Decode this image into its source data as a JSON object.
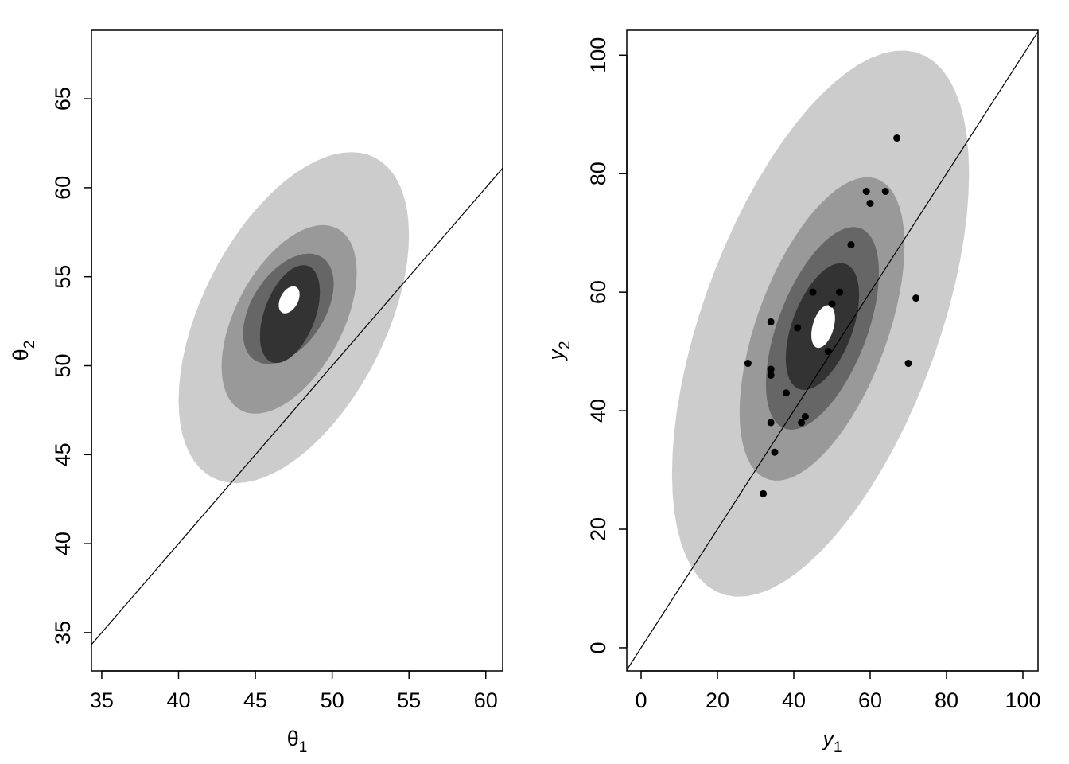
{
  "chart_data": [
    {
      "type": "contour",
      "xlabel": {
        "base": "θ",
        "sub": "1",
        "italic": false
      },
      "ylabel": {
        "base": "θ",
        "sub": "2",
        "italic": false
      },
      "xlim": [
        34.33,
        61.1
      ],
      "ylim": [
        32.85,
        68.85
      ],
      "xticks": [
        35,
        40,
        45,
        50,
        55,
        60
      ],
      "yticks": [
        35,
        40,
        45,
        50,
        55,
        60,
        65
      ],
      "reference_line": {
        "intercept": 0,
        "slope": 1
      },
      "contours": [
        {
          "fill": "#cccccc",
          "cx": 47.5,
          "cy": 52.7,
          "hx": 7.5,
          "hy": 9.3,
          "rho": 0.5
        },
        {
          "fill": "#999999",
          "cx": 47.2,
          "cy": 52.6,
          "hx": 4.4,
          "hy": 5.3,
          "rho": 0.5
        },
        {
          "fill": "#666666",
          "cx": 47.15,
          "cy": 53.2,
          "hx": 2.95,
          "hy": 3.1,
          "rho": 0.45
        },
        {
          "fill": "#333333",
          "cx": 47.25,
          "cy": 52.9,
          "hx": 1.95,
          "hy": 2.75,
          "rho": 0.45
        },
        {
          "fill": "#ffffff",
          "cx": 47.2,
          "cy": 53.7,
          "hx": 0.68,
          "hy": 0.76,
          "rho": 0.4
        }
      ],
      "points": []
    },
    {
      "type": "contour",
      "xlabel": {
        "base": "y",
        "sub": "1",
        "italic": true
      },
      "ylabel": {
        "base": "y",
        "sub": "2",
        "italic": true
      },
      "xlim": [
        -3.75,
        103.96
      ],
      "ylim": [
        -3.9,
        104.2
      ],
      "xticks": [
        0,
        20,
        40,
        60,
        80,
        100
      ],
      "yticks": [
        0,
        20,
        40,
        60,
        80,
        100
      ],
      "reference_line": {
        "intercept": 0,
        "slope": 1
      },
      "contours": [
        {
          "fill": "#cccccc",
          "cx": 47,
          "cy": 54.7,
          "hx": 38.9,
          "hy": 46.1,
          "rho": 0.55
        },
        {
          "fill": "#999999",
          "cx": 47.4,
          "cy": 53.8,
          "hx": 21.6,
          "hy": 25.6,
          "rho": 0.55
        },
        {
          "fill": "#666666",
          "cx": 47.5,
          "cy": 53.9,
          "hx": 14.8,
          "hy": 17.1,
          "rho": 0.55
        },
        {
          "fill": "#333333",
          "cx": 47.5,
          "cy": 54.2,
          "hx": 9.6,
          "hy": 10.7,
          "rho": 0.5
        },
        {
          "fill": "#ffffff",
          "cx": 47.7,
          "cy": 54.2,
          "hx": 3.1,
          "hy": 3.6,
          "rho": 0.4
        }
      ],
      "points": [
        [
          67,
          86
        ],
        [
          59,
          77
        ],
        [
          64,
          77
        ],
        [
          60,
          75
        ],
        [
          55,
          68
        ],
        [
          45,
          60
        ],
        [
          52,
          60
        ],
        [
          50,
          58
        ],
        [
          72,
          59
        ],
        [
          41,
          54
        ],
        [
          34,
          55
        ],
        [
          28,
          48
        ],
        [
          34,
          47
        ],
        [
          34,
          46
        ],
        [
          49,
          50
        ],
        [
          70,
          48
        ],
        [
          38,
          43
        ],
        [
          43,
          39
        ],
        [
          42,
          38
        ],
        [
          34,
          38
        ],
        [
          35,
          33
        ],
        [
          32,
          26
        ]
      ]
    }
  ]
}
